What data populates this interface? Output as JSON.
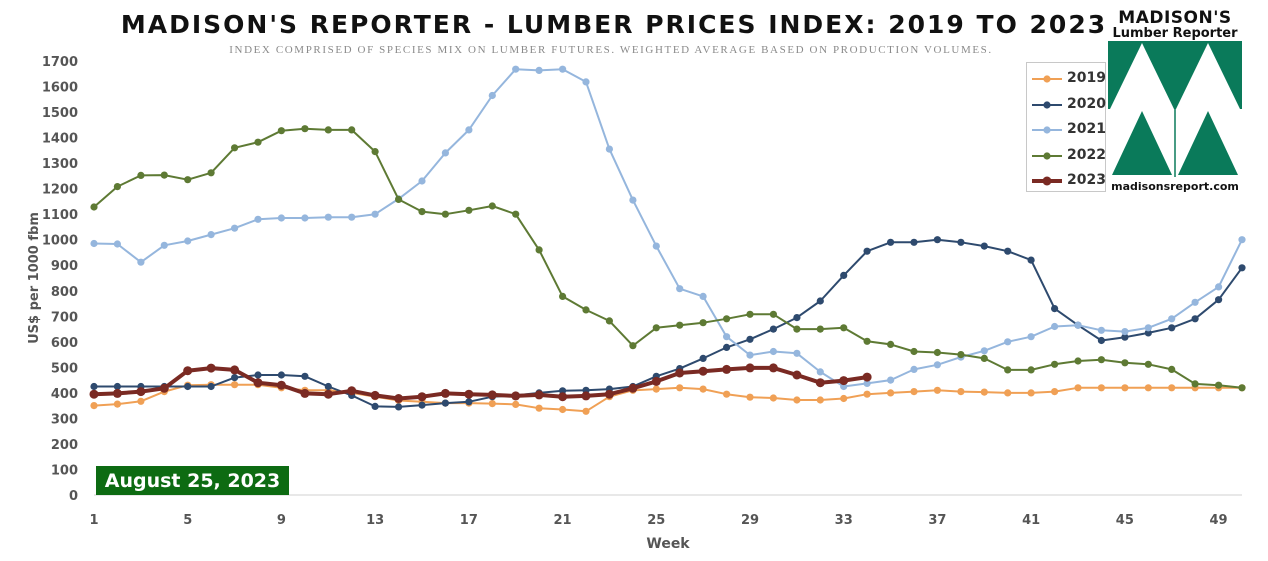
{
  "chart_data": {
    "type": "line",
    "title": "MADISON'S REPORTER - LUMBER PRICES INDEX: 2019 TO 2023",
    "subtitle": "INDEX COMPRISED OF SPECIES MIX ON LUMBER FUTURES. WEIGHTED AVERAGE BASED ON PRODUCTION VOLUMES.",
    "xlabel": "Week",
    "ylabel": "US$ per 1000 fbm",
    "xlim": [
      1,
      50
    ],
    "ylim": [
      0,
      1700
    ],
    "x_ticks": [
      "1",
      "5",
      "9",
      "13",
      "17",
      "21",
      "25",
      "29",
      "33",
      "37",
      "41",
      "45",
      "49"
    ],
    "y_ticks": [
      "0",
      "100",
      "200",
      "300",
      "400",
      "500",
      "600",
      "700",
      "800",
      "900",
      "1000",
      "1100",
      "1200",
      "1300",
      "1400",
      "1500",
      "1600",
      "1700"
    ],
    "grid": false,
    "legend_position": "top-right",
    "series": [
      {
        "name": "2019",
        "color": "#f0a055",
        "width": 2,
        "x": [
          1,
          2,
          3,
          4,
          5,
          6,
          7,
          8,
          9,
          10,
          11,
          12,
          13,
          14,
          15,
          16,
          17,
          18,
          19,
          20,
          21,
          22,
          23,
          24,
          25,
          26,
          27,
          28,
          29,
          30,
          31,
          32,
          33,
          34,
          35,
          36,
          37,
          38,
          39,
          40,
          41,
          42,
          43,
          44,
          45,
          46,
          47,
          48,
          49,
          50
        ],
        "values": [
          350,
          356,
          367,
          405,
          430,
          432,
          432,
          432,
          420,
          410,
          410,
          400,
          385,
          370,
          365,
          360,
          360,
          358,
          355,
          340,
          335,
          328,
          385,
          410,
          415,
          420,
          415,
          395,
          383,
          380,
          372,
          372,
          378,
          395,
          400,
          405,
          410,
          405,
          403,
          400,
          400,
          405,
          420,
          420,
          420,
          420,
          420,
          420,
          420,
          420
        ]
      },
      {
        "name": "2020",
        "color": "#2e4a6e",
        "width": 2,
        "x": [
          1,
          2,
          3,
          4,
          5,
          6,
          7,
          8,
          9,
          10,
          11,
          12,
          13,
          14,
          15,
          16,
          17,
          18,
          19,
          20,
          21,
          22,
          23,
          24,
          25,
          26,
          27,
          28,
          29,
          30,
          31,
          32,
          33,
          34,
          35,
          36,
          37,
          38,
          39,
          40,
          41,
          42,
          43,
          44,
          45,
          46,
          47,
          48,
          49,
          50
        ],
        "values": [
          425,
          425,
          425,
          425,
          425,
          425,
          460,
          470,
          470,
          465,
          425,
          390,
          347,
          345,
          352,
          360,
          365,
          385,
          390,
          400,
          408,
          410,
          415,
          425,
          465,
          495,
          535,
          578,
          610,
          650,
          695,
          760,
          860,
          955,
          990,
          990,
          1000,
          990,
          975,
          955,
          920,
          730,
          665,
          605,
          618,
          635,
          655,
          690,
          765,
          890
        ]
      },
      {
        "name": "2021",
        "color": "#95b6dd",
        "width": 2,
        "x": [
          1,
          2,
          3,
          4,
          5,
          6,
          7,
          8,
          9,
          10,
          11,
          12,
          13,
          14,
          15,
          16,
          17,
          18,
          19,
          20,
          21,
          22,
          23,
          24,
          25,
          26,
          27,
          28,
          29,
          30,
          31,
          32,
          33,
          34,
          35,
          36,
          37,
          38,
          39,
          40,
          41,
          42,
          43,
          44,
          45,
          46,
          47,
          48,
          49,
          50
        ],
        "values": [
          985,
          983,
          912,
          978,
          995,
          1020,
          1045,
          1080,
          1085,
          1085,
          1088,
          1088,
          1100,
          1160,
          1230,
          1340,
          1430,
          1565,
          1668,
          1663,
          1668,
          1618,
          1355,
          1155,
          975,
          808,
          778,
          620,
          548,
          562,
          555,
          482,
          425,
          437,
          450,
          492,
          510,
          540,
          565,
          600,
          620,
          660,
          665,
          645,
          640,
          655,
          690,
          755,
          815,
          1000
        ]
      },
      {
        "name": "2022",
        "color": "#5e7a34",
        "width": 2,
        "x": [
          1,
          2,
          3,
          4,
          5,
          6,
          7,
          8,
          9,
          10,
          11,
          12,
          13,
          14,
          15,
          16,
          17,
          18,
          19,
          20,
          21,
          22,
          23,
          24,
          25,
          26,
          27,
          28,
          29,
          30,
          31,
          32,
          33,
          34,
          35,
          36,
          37,
          38,
          39,
          40,
          41,
          42,
          43,
          44,
          45,
          46,
          47,
          48,
          49,
          50
        ],
        "values": [
          1128,
          1208,
          1252,
          1253,
          1235,
          1262,
          1360,
          1382,
          1427,
          1435,
          1430,
          1430,
          1345,
          1158,
          1110,
          1100,
          1115,
          1132,
          1100,
          960,
          778,
          725,
          682,
          585,
          655,
          665,
          675,
          690,
          708,
          708,
          650,
          650,
          655,
          602,
          590,
          562,
          558,
          550,
          535,
          490,
          490,
          512,
          525,
          530,
          518,
          512,
          492,
          435,
          430,
          420
        ]
      },
      {
        "name": "2023",
        "color": "#7a2a23",
        "width": 4,
        "x": [
          1,
          2,
          3,
          4,
          5,
          6,
          7,
          8,
          9,
          10,
          11,
          12,
          13,
          14,
          15,
          16,
          17,
          18,
          19,
          20,
          21,
          22,
          23,
          24,
          25,
          26,
          27,
          28,
          29,
          30,
          31,
          32,
          33,
          34
        ],
        "values": [
          395,
          398,
          405,
          418,
          487,
          497,
          490,
          440,
          430,
          398,
          395,
          408,
          390,
          378,
          385,
          398,
          395,
          392,
          388,
          392,
          385,
          388,
          395,
          418,
          445,
          478,
          485,
          492,
          498,
          498,
          470,
          440,
          448,
          462
        ]
      }
    ]
  },
  "badge": {
    "date": "August 25, 2023"
  },
  "logo": {
    "line1": "MADISON'S",
    "line2": "Lumber Reporter",
    "url": "madisonsreport.com",
    "color": "#0a7a5a"
  }
}
